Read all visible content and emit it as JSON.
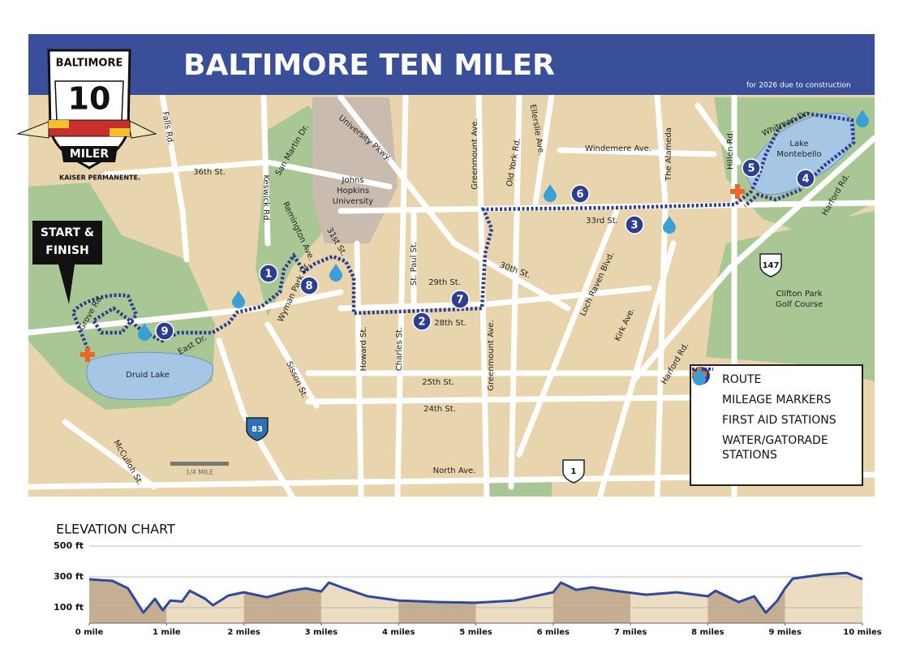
{
  "header": {
    "title": "BALTIMORE TEN MILER",
    "note": "for 2026 due to construction"
  },
  "logo": {
    "top": "BALTIMORE",
    "number": "10",
    "bottom": "MILER",
    "sponsor": "KAISER PERMANENTE."
  },
  "map": {
    "start_label": [
      "START &",
      "FINISH"
    ],
    "streets": [
      "Falls Rd.",
      "36th St.",
      "Keswick Rd.",
      "San Martin Dr.",
      "University Pkwy.",
      "Remington Ave.",
      "31st St.",
      "Wyman Park Dr.",
      "29th St.",
      "St. Paul St.",
      "28th St.",
      "Howard St.",
      "Charles St.",
      "Greenmount Ave.",
      "Old York Rd.",
      "Ellerslie Ave.",
      "Windemere Ave.",
      "The Alameda",
      "Hillen Rd.",
      "Whitman Dr.",
      "33rd St.",
      "30th St.",
      "Loch Raven Blvd.",
      "Kirk Ave.",
      "Harford Rd.",
      "Harford Rd.",
      "Greenmount Ave.",
      "Sisson St.",
      "East Dr.",
      "Grove Rd.",
      "25th St.",
      "24th St.",
      "McCulloh St.",
      "North Ave."
    ],
    "places": [
      [
        "Johns",
        "Hopkins",
        "University"
      ],
      [
        "Lake",
        "Montebello"
      ],
      [
        "Druid Lake"
      ],
      [
        "Clifton Park",
        "Golf Course"
      ]
    ],
    "mile_markers": [
      "1",
      "2",
      "3",
      "4",
      "5",
      "6",
      "7",
      "8",
      "9"
    ],
    "shields": [
      "83",
      "147",
      "1"
    ],
    "scale": "1/4 MILE"
  },
  "legend": {
    "marker_symbol": "M",
    "items": [
      "ROUTE",
      "MILEAGE MARKERS",
      "FIRST AID STATIONS",
      "WATER/GATORADE STATIONS"
    ]
  },
  "chart_data": {
    "type": "line",
    "title": "ELEVATION CHART",
    "x": [
      0,
      0.3,
      0.5,
      0.7,
      0.85,
      0.95,
      1.05,
      1.2,
      1.3,
      1.5,
      1.6,
      1.8,
      2.0,
      2.3,
      2.6,
      2.8,
      3.0,
      3.1,
      3.3,
      3.6,
      4.0,
      4.5,
      5.0,
      5.5,
      6.0,
      6.1,
      6.3,
      6.5,
      6.8,
      7.2,
      7.6,
      8.0,
      8.1,
      8.4,
      8.6,
      8.75,
      8.9,
      9.0,
      9.1,
      9.5,
      9.8,
      10.0
    ],
    "values": [
      284,
      274,
      226,
      68,
      158,
      84,
      147,
      140,
      210,
      158,
      116,
      179,
      200,
      168,
      210,
      226,
      205,
      263,
      226,
      174,
      147,
      137,
      132,
      147,
      200,
      263,
      216,
      232,
      210,
      184,
      200,
      174,
      210,
      137,
      174,
      68,
      147,
      226,
      289,
      316,
      326,
      284
    ],
    "color": "#2e4a9e",
    "xlim": [
      0,
      10
    ],
    "xticks": [
      {
        "value": 0,
        "label": "0 mile"
      },
      {
        "value": 1,
        "label": "1 mile"
      },
      {
        "value": 2,
        "label": "2 miles"
      },
      {
        "value": 3,
        "label": "3 miles"
      },
      {
        "value": 4,
        "label": "4 miles"
      },
      {
        "value": 5,
        "label": "5 miles"
      },
      {
        "value": 6,
        "label": "6 miles"
      },
      {
        "value": 7,
        "label": "7 miles"
      },
      {
        "value": 8,
        "label": "8 miles"
      },
      {
        "value": 9,
        "label": "9 miles"
      },
      {
        "value": 10,
        "label": "10 miles"
      }
    ],
    "ylim": [
      0,
      500
    ],
    "yticks": [
      {
        "value": 500,
        "label": "500 ft"
      },
      {
        "value": 300,
        "label": "300 ft"
      },
      {
        "value": 100,
        "label": "100 ft"
      }
    ],
    "grid": true
  }
}
